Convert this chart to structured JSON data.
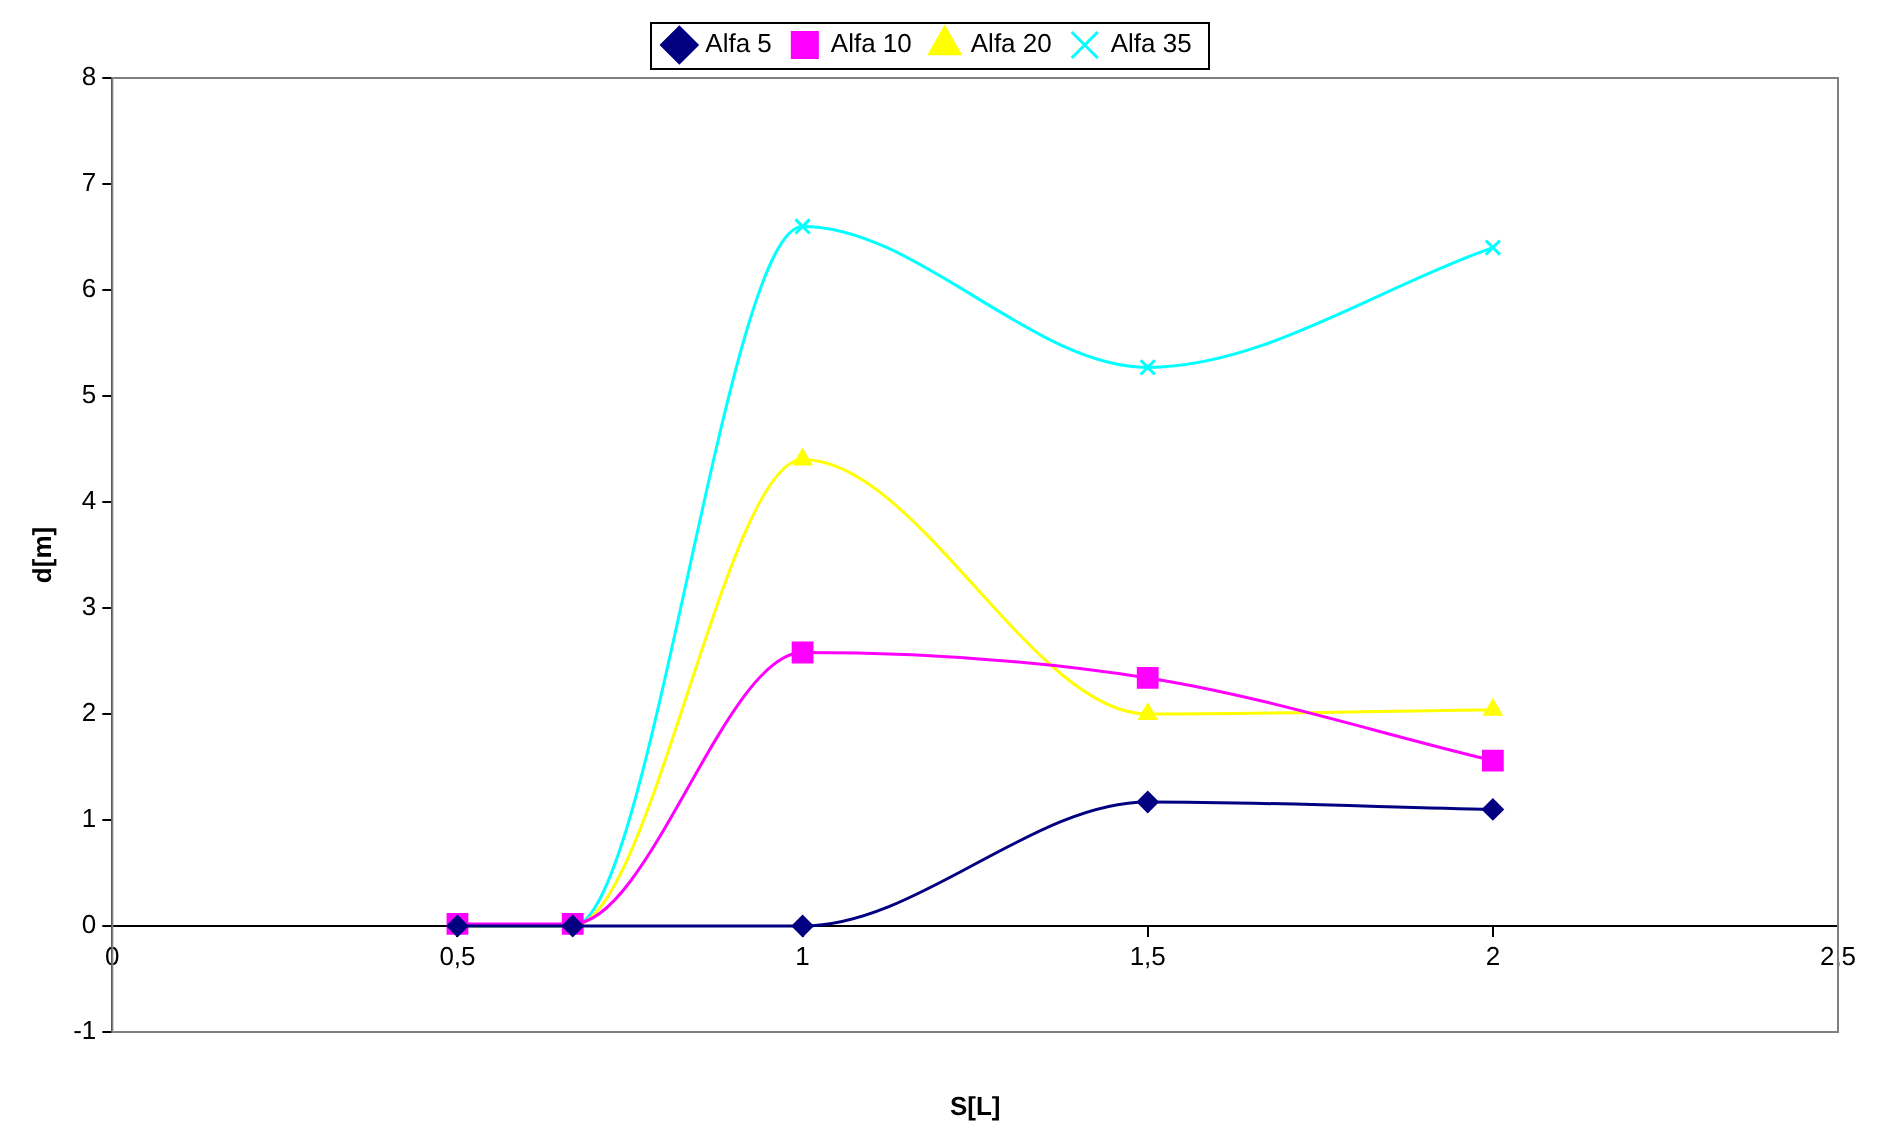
{
  "chart_data": {
    "type": "line",
    "xlabel": "S[L]",
    "ylabel": "d[m]",
    "xlim": [
      0,
      2.5
    ],
    "xticks": [
      0,
      {
        "value": 0.5,
        "label": "0,5"
      },
      1,
      {
        "value": 1.5,
        "label": "1,5"
      },
      2,
      {
        "value": 2.5,
        "label": "2,5"
      }
    ],
    "ylim": [
      -1,
      8
    ],
    "yticks": [
      -1,
      0,
      1,
      2,
      3,
      4,
      5,
      6,
      7,
      8
    ],
    "grid": false,
    "legend": "top",
    "line_style": "solid",
    "x": [
      0.5,
      0.667,
      1,
      1.5,
      2
    ],
    "series": [
      {
        "name": "Alfa 5",
        "color": "#000080",
        "marker": "diamond",
        "values": [
          0,
          0,
          0,
          1.17,
          1.1
        ]
      },
      {
        "name": "Alfa 10",
        "color": "#ff00ff",
        "marker": "square",
        "values": [
          0.02,
          0.02,
          2.58,
          2.34,
          1.56
        ]
      },
      {
        "name": "Alfa 20",
        "color": "#ffff00",
        "marker": "triangle",
        "values": [
          0,
          0,
          4.4,
          2.0,
          2.04
        ]
      },
      {
        "name": "Alfa 35",
        "color": "#00ffff",
        "marker": "cross",
        "values": [
          0,
          0,
          6.6,
          5.27,
          6.4
        ]
      }
    ]
  }
}
